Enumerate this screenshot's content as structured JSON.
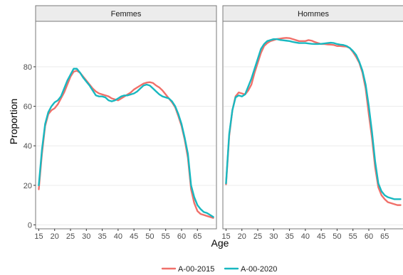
{
  "chart_data": {
    "type": "line",
    "xlabel": "Age",
    "ylabel": "Proportion",
    "xlim": [
      14,
      71
    ],
    "ylim": [
      -2,
      103
    ],
    "x_ticks": [
      15,
      20,
      25,
      30,
      35,
      40,
      45,
      50,
      55,
      60,
      65
    ],
    "y_ticks": [
      0,
      20,
      40,
      60,
      80
    ],
    "grid": true,
    "legend_position": "bottom",
    "series_colors": {
      "A-00-2015": "#f0706a",
      "A-00-2020": "#18b8c0"
    },
    "panels": [
      {
        "label": "Femmes",
        "series": [
          {
            "name": "A-00-2015",
            "x": [
              15,
              16,
              17,
              18,
              19,
              20,
              21,
              22,
              23,
              24,
              25,
              26,
              27,
              28,
              29,
              30,
              31,
              32,
              33,
              34,
              35,
              36,
              37,
              38,
              39,
              40,
              41,
              42,
              43,
              44,
              45,
              46,
              47,
              48,
              49,
              50,
              51,
              52,
              53,
              54,
              55,
              56,
              57,
              58,
              59,
              60,
              61,
              62,
              63,
              64,
              65,
              66,
              67,
              68,
              69,
              70
            ],
            "y": [
              18,
              36,
              50,
              56,
              58,
              59,
              61,
              64,
              67,
              71,
              75,
              77.5,
              78,
              77,
              75,
              73,
              71,
              69,
              67.5,
              66.5,
              66,
              65.5,
              65,
              64,
              63.5,
              63,
              64,
              65,
              66,
              67,
              68.5,
              69.5,
              70.5,
              71.5,
              72,
              72.2,
              71.8,
              70.5,
              69.5,
              68,
              66,
              64,
              62,
              59.5,
              55,
              50,
              43,
              34,
              18,
              11,
              7,
              5.5,
              5,
              4.5,
              4,
              3.5
            ]
          },
          {
            "name": "A-00-2020",
            "x": [
              15,
              16,
              17,
              18,
              19,
              20,
              21,
              22,
              23,
              24,
              25,
              26,
              27,
              28,
              29,
              30,
              31,
              32,
              33,
              34,
              35,
              36,
              37,
              38,
              39,
              40,
              41,
              42,
              43,
              44,
              45,
              46,
              47,
              48,
              49,
              50,
              51,
              52,
              53,
              54,
              55,
              56,
              57,
              58,
              59,
              60,
              61,
              62,
              63,
              64,
              65,
              66,
              67,
              68,
              69,
              70
            ],
            "y": [
              20,
              38,
              51,
              57,
              60,
              62,
              63,
              65,
              69,
              73,
              76,
              79,
              79,
              77,
              74.5,
              72.5,
              70.5,
              68,
              65.5,
              65,
              65,
              64.5,
              63,
              62.5,
              63,
              64,
              65,
              65.5,
              65.5,
              66,
              66.5,
              67.5,
              69,
              70.5,
              71,
              70.5,
              69,
              67.5,
              66,
              65,
              64.5,
              64,
              62.5,
              60,
              56,
              51,
              44,
              36,
              20,
              14,
              10,
              8,
              6.5,
              6,
              5,
              4
            ]
          }
        ]
      },
      {
        "label": "Hommes",
        "series": [
          {
            "name": "A-00-2015",
            "x": [
              15,
              16,
              17,
              18,
              19,
              20,
              21,
              22,
              23,
              24,
              25,
              26,
              27,
              28,
              29,
              30,
              31,
              32,
              33,
              34,
              35,
              36,
              37,
              38,
              39,
              40,
              41,
              42,
              43,
              44,
              45,
              46,
              47,
              48,
              49,
              50,
              51,
              52,
              53,
              54,
              55,
              56,
              57,
              58,
              59,
              60,
              61,
              62,
              63,
              64,
              65,
              66,
              67,
              68,
              69,
              70
            ],
            "y": [
              20.5,
              45,
              58,
              65,
              67,
              66.5,
              66,
              68,
              71,
              77,
              82,
              87,
              90.5,
              92,
              93,
              93.5,
              94,
              94.2,
              94.5,
              94.6,
              94.5,
              94,
              93.5,
              93,
              93,
              93,
              93.5,
              93.2,
              92.5,
              92,
              91.5,
              91.5,
              91.3,
              91.2,
              91,
              90.5,
              90.5,
              90.3,
              90.2,
              89.5,
              87.5,
              85,
              82,
              77,
              69,
              56,
              44,
              29,
              19,
              15,
              13,
              11.5,
              11,
              10.5,
              10,
              10
            ]
          },
          {
            "name": "A-00-2020",
            "x": [
              15,
              16,
              17,
              18,
              19,
              20,
              21,
              22,
              23,
              24,
              25,
              26,
              27,
              28,
              29,
              30,
              31,
              32,
              33,
              34,
              35,
              36,
              37,
              38,
              39,
              40,
              41,
              42,
              43,
              44,
              45,
              46,
              47,
              48,
              49,
              50,
              51,
              52,
              53,
              54,
              55,
              56,
              57,
              58,
              59,
              60,
              61,
              62,
              63,
              64,
              65,
              66,
              67,
              68,
              69,
              70
            ],
            "y": [
              21,
              46,
              58,
              64.5,
              65.5,
              65,
              66,
              70,
              74,
              79,
              84,
              89,
              91.5,
              93,
              93.5,
              94,
              94,
              93.6,
              93.4,
              93.2,
              93,
              92.6,
              92.3,
              92,
              92,
              92,
              91.8,
              91.6,
              91.5,
              91.5,
              91.6,
              91.8,
              92,
              92.2,
              92,
              91.5,
              91.2,
              91,
              90.5,
              89.5,
              88,
              86,
              82.5,
              78,
              71,
              60,
              47,
              32,
              21,
              17,
              15,
              14,
              13.5,
              13,
              13,
              13
            ]
          }
        ]
      }
    ]
  }
}
